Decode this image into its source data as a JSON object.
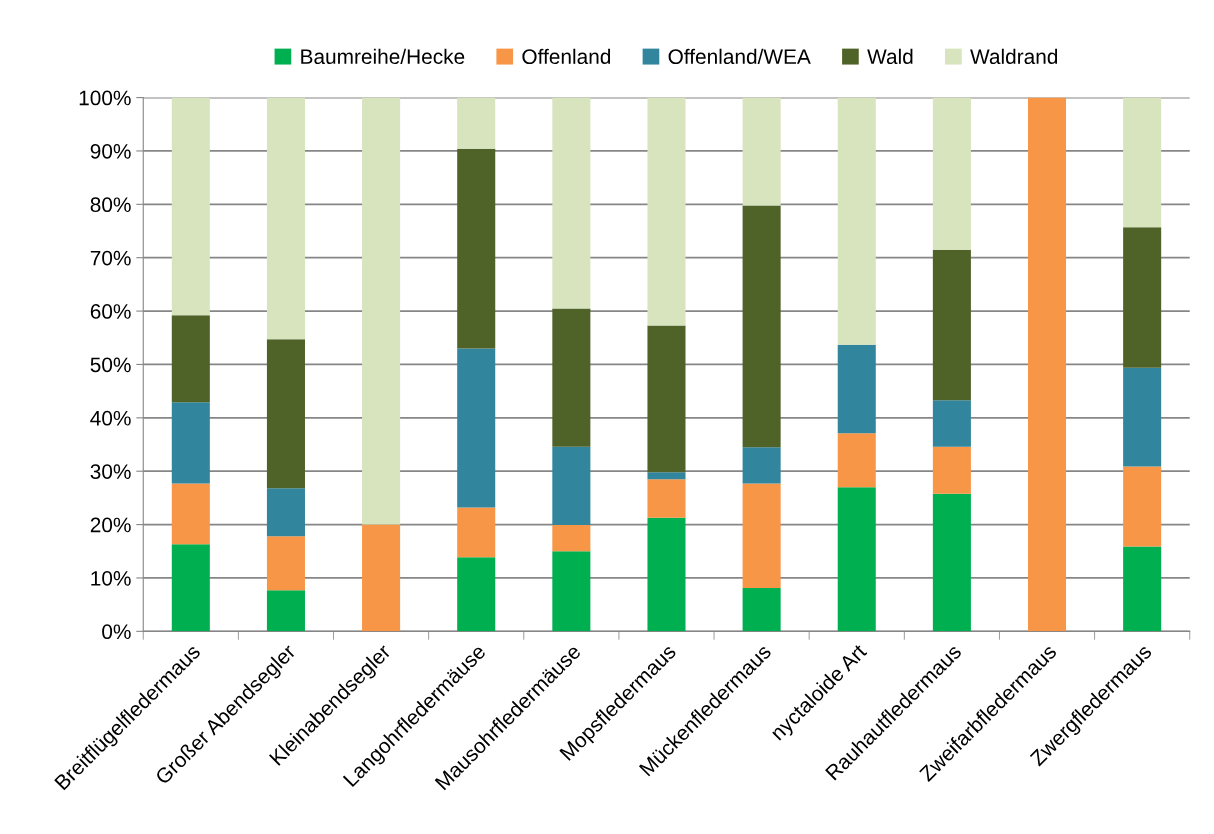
{
  "chart_data": {
    "type": "bar",
    "stacked": true,
    "grid": "y",
    "legend": "top",
    "categories": [
      "Breitflügelfledermaus",
      "Großer Abendsegler",
      "Kleinabendsegler",
      "Langohrfledermäuse",
      "Mausohrfledermäuse",
      "Mopsfledermaus",
      "Mückenfledermaus",
      "nyctaloide Art",
      "Rauhautfledermaus",
      "Zweifarbfledermaus",
      "Zwergfledermaus"
    ],
    "series": [
      {
        "name": "Baumreihe/Hecke",
        "color": "#00b050",
        "values": [
          16.3,
          7.7,
          0,
          13.9,
          15.0,
          21.3,
          8.1,
          27.0,
          25.8,
          0,
          15.9
        ]
      },
      {
        "name": "Offenland",
        "color": "#f79646",
        "values": [
          11.4,
          10.1,
          20.0,
          9.3,
          4.9,
          7.2,
          19.6,
          10.1,
          8.8,
          100,
          15.0
        ]
      },
      {
        "name": "Offenland/WEA",
        "color": "#31859c",
        "values": [
          15.2,
          9.0,
          0,
          29.8,
          14.7,
          1.3,
          6.8,
          16.6,
          8.7,
          0,
          18.5
        ]
      },
      {
        "name": "Wald",
        "color": "#4f6228",
        "values": [
          16.3,
          27.9,
          0,
          37.4,
          25.9,
          27.5,
          45.3,
          0,
          28.2,
          0,
          26.3
        ]
      },
      {
        "name": "Waldrand",
        "color": "#d7e4bd",
        "values": [
          40.8,
          45.3,
          80.0,
          9.6,
          39.5,
          42.7,
          20.2,
          46.3,
          28.5,
          0,
          24.3
        ]
      }
    ],
    "ylim": [
      0,
      100
    ],
    "yticks": [
      {
        "value": 0,
        "label": "0%"
      },
      {
        "value": 10,
        "label": "10%"
      },
      {
        "value": 20,
        "label": "20%"
      },
      {
        "value": 30,
        "label": "30%"
      },
      {
        "value": 40,
        "label": "40%"
      },
      {
        "value": 50,
        "label": "50%"
      },
      {
        "value": 60,
        "label": "60%"
      },
      {
        "value": 70,
        "label": "70%"
      },
      {
        "value": 80,
        "label": "80%"
      },
      {
        "value": 90,
        "label": "90%"
      },
      {
        "value": 100,
        "label": "100%"
      }
    ]
  }
}
